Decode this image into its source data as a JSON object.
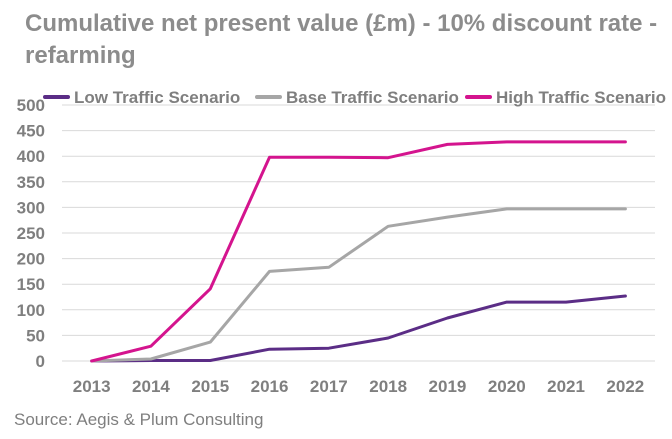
{
  "chart_data": {
    "type": "line",
    "title": "Cumulative net present value (£m) - 10% discount rate - refarming",
    "xlabel": "",
    "ylabel": "",
    "categories": [
      "2013",
      "2014",
      "2015",
      "2016",
      "2017",
      "2018",
      "2019",
      "2020",
      "2021",
      "2022"
    ],
    "ylim": [
      0,
      500
    ],
    "yticks": [
      0,
      50,
      100,
      150,
      200,
      250,
      300,
      350,
      400,
      450,
      500
    ],
    "grid": "horizontal",
    "legend": "top",
    "series": [
      {
        "name": "Low Traffic Scenario",
        "color": "#5b2d86",
        "values": [
          0,
          1,
          1,
          23,
          25,
          45,
          84,
          115,
          115,
          127
        ]
      },
      {
        "name": "Base Traffic Scenario",
        "color": "#a6a6a6",
        "values": [
          0,
          4,
          37,
          175,
          183,
          263,
          281,
          297,
          297,
          297
        ]
      },
      {
        "name": "High Traffic Scenario",
        "color": "#d4148e",
        "values": [
          0,
          29,
          141,
          398,
          398,
          397,
          423,
          428,
          428,
          428
        ]
      }
    ]
  },
  "source": "Source: Aegis & Plum Consulting"
}
